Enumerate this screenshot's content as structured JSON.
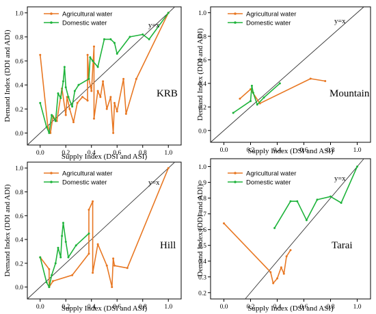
{
  "chart_data": [
    {
      "type": "line",
      "panel_label": "KRB",
      "xlabel": "Supply Index (DSI and ASI)",
      "ylabel": "Demand Index (DDI and ADI)",
      "xlim": [
        -0.1,
        1.1
      ],
      "ylim": [
        -0.1,
        1.05
      ],
      "xticks": [
        "0.0",
        "0.2",
        "0.4",
        "0.6",
        "0.8",
        "1.0"
      ],
      "yticks": [
        "0.0",
        "0.2",
        "0.4",
        "0.6",
        "0.8",
        "1.0"
      ],
      "reference_label": "y=x",
      "legend": "top-left",
      "series": [
        {
          "name": "Agricultural water",
          "color": "#E87722",
          "points": [
            [
              0.0,
              0.65
            ],
            [
              0.06,
              0.05
            ],
            [
              0.08,
              0.0
            ],
            [
              0.1,
              0.14
            ],
            [
              0.13,
              0.1
            ],
            [
              0.17,
              0.37
            ],
            [
              0.2,
              0.15
            ],
            [
              0.21,
              0.3
            ],
            [
              0.23,
              0.2
            ],
            [
              0.26,
              0.09
            ],
            [
              0.29,
              0.25
            ],
            [
              0.33,
              0.3
            ],
            [
              0.37,
              0.27
            ],
            [
              0.37,
              0.65
            ],
            [
              0.38,
              0.45
            ],
            [
              0.4,
              0.35
            ],
            [
              0.42,
              0.72
            ],
            [
              0.42,
              0.12
            ],
            [
              0.45,
              0.35
            ],
            [
              0.47,
              0.3
            ],
            [
              0.49,
              0.43
            ],
            [
              0.52,
              0.2
            ],
            [
              0.55,
              0.3
            ],
            [
              0.57,
              0.0
            ],
            [
              0.58,
              0.25
            ],
            [
              0.6,
              0.18
            ],
            [
              0.65,
              0.45
            ],
            [
              0.67,
              0.16
            ],
            [
              0.75,
              0.45
            ],
            [
              1.0,
              1.0
            ]
          ]
        },
        {
          "name": "Domestic water",
          "color": "#1DB33A",
          "points": [
            [
              0.0,
              0.25
            ],
            [
              0.05,
              0.05
            ],
            [
              0.07,
              0.0
            ],
            [
              0.09,
              0.15
            ],
            [
              0.12,
              0.1
            ],
            [
              0.14,
              0.33
            ],
            [
              0.16,
              0.29
            ],
            [
              0.18,
              0.43
            ],
            [
              0.19,
              0.55
            ],
            [
              0.2,
              0.38
            ],
            [
              0.22,
              0.3
            ],
            [
              0.25,
              0.22
            ],
            [
              0.27,
              0.35
            ],
            [
              0.3,
              0.4
            ],
            [
              0.38,
              0.45
            ],
            [
              0.39,
              0.63
            ],
            [
              0.41,
              0.6
            ],
            [
              0.45,
              0.55
            ],
            [
              0.5,
              0.78
            ],
            [
              0.55,
              0.78
            ],
            [
              0.58,
              0.75
            ],
            [
              0.6,
              0.66
            ],
            [
              0.7,
              0.8
            ],
            [
              0.8,
              0.82
            ],
            [
              0.85,
              0.78
            ],
            [
              1.0,
              1.0
            ]
          ]
        }
      ]
    },
    {
      "type": "line",
      "panel_label": "Mountain",
      "xlabel": "Supply Index (DSI and ASI)",
      "ylabel": "Demand Index (DDI and ADI)",
      "xlim": [
        -0.1,
        1.1
      ],
      "ylim": [
        -0.1,
        1.05
      ],
      "xticks": [
        "0.0",
        "0.2",
        "0.4",
        "0.6",
        "0.8",
        "1.0"
      ],
      "yticks": [
        "0.0",
        "0.2",
        "0.4",
        "0.6",
        "0.8",
        "1.0"
      ],
      "reference_label": "y=x",
      "legend": "top-left",
      "series": [
        {
          "name": "Agricultural water",
          "color": "#E87722",
          "points": [
            [
              0.12,
              0.27
            ],
            [
              0.2,
              0.35
            ],
            [
              0.27,
              0.23
            ],
            [
              0.65,
              0.44
            ],
            [
              0.76,
              0.42
            ]
          ]
        },
        {
          "name": "Domestic water",
          "color": "#1DB33A",
          "points": [
            [
              0.07,
              0.15
            ],
            [
              0.2,
              0.25
            ],
            [
              0.21,
              0.38
            ],
            [
              0.22,
              0.32
            ],
            [
              0.25,
              0.22
            ],
            [
              0.3,
              0.28
            ],
            [
              0.42,
              0.4
            ]
          ]
        }
      ]
    },
    {
      "type": "line",
      "panel_label": "Hill",
      "xlabel": "Supply Index (DSI and ASI)",
      "ylabel": "Demand Index (DDI and ADI)",
      "xlim": [
        -0.1,
        1.1
      ],
      "ylim": [
        -0.1,
        1.05
      ],
      "xticks": [
        "0.0",
        "0.2",
        "0.4",
        "0.6",
        "0.8",
        "1.0"
      ],
      "yticks": [
        "0.0",
        "0.2",
        "0.4",
        "0.6",
        "0.8",
        "1.0"
      ],
      "reference_label": "y=x",
      "legend": "top-left",
      "series": [
        {
          "name": "Agricultural water",
          "color": "#E87722",
          "points": [
            [
              0.0,
              0.25
            ],
            [
              0.07,
              0.15
            ],
            [
              0.07,
              0.0
            ],
            [
              0.1,
              0.05
            ],
            [
              0.25,
              0.1
            ],
            [
              0.38,
              0.28
            ],
            [
              0.38,
              0.65
            ],
            [
              0.41,
              0.72
            ],
            [
              0.41,
              0.12
            ],
            [
              0.45,
              0.36
            ],
            [
              0.52,
              0.18
            ],
            [
              0.56,
              0.0
            ],
            [
              0.57,
              0.24
            ],
            [
              0.58,
              0.18
            ],
            [
              0.68,
              0.16
            ],
            [
              1.0,
              1.0
            ]
          ]
        },
        {
          "name": "Domestic water",
          "color": "#1DB33A",
          "points": [
            [
              0.0,
              0.25
            ],
            [
              0.05,
              0.04
            ],
            [
              0.07,
              0.0
            ],
            [
              0.09,
              0.1
            ],
            [
              0.12,
              0.2
            ],
            [
              0.14,
              0.33
            ],
            [
              0.16,
              0.25
            ],
            [
              0.17,
              0.43
            ],
            [
              0.18,
              0.54
            ],
            [
              0.2,
              0.38
            ],
            [
              0.22,
              0.25
            ],
            [
              0.28,
              0.35
            ],
            [
              0.38,
              0.45
            ]
          ]
        }
      ]
    },
    {
      "type": "line",
      "panel_label": "Tarai",
      "xlabel": "Supply Index (DSI and ASI)",
      "ylabel": "Demand Index (DDI and ADI)",
      "xlim": [
        -0.1,
        1.1
      ],
      "ylim": [
        0.16,
        1.05
      ],
      "xticks": [
        "0.0",
        "0.2",
        "0.4",
        "0.6",
        "0.8",
        "1.0"
      ],
      "yticks": [
        "0.2",
        "0.3",
        "0.4",
        "0.5",
        "0.6",
        "0.7",
        "0.8",
        "0.9",
        "1.0"
      ],
      "reference_label": "y=x",
      "legend": "top-left",
      "series": [
        {
          "name": "Agricultural water",
          "color": "#E87722",
          "points": [
            [
              0.0,
              0.64
            ],
            [
              0.35,
              0.33
            ],
            [
              0.37,
              0.26
            ],
            [
              0.4,
              0.29
            ],
            [
              0.43,
              0.36
            ],
            [
              0.45,
              0.32
            ],
            [
              0.47,
              0.43
            ],
            [
              0.5,
              0.47
            ]
          ]
        },
        {
          "name": "Domestic water",
          "color": "#1DB33A",
          "points": [
            [
              0.38,
              0.61
            ],
            [
              0.5,
              0.78
            ],
            [
              0.55,
              0.78
            ],
            [
              0.62,
              0.66
            ],
            [
              0.7,
              0.79
            ],
            [
              0.8,
              0.81
            ],
            [
              0.88,
              0.77
            ],
            [
              1.0,
              1.0
            ]
          ]
        }
      ]
    }
  ]
}
